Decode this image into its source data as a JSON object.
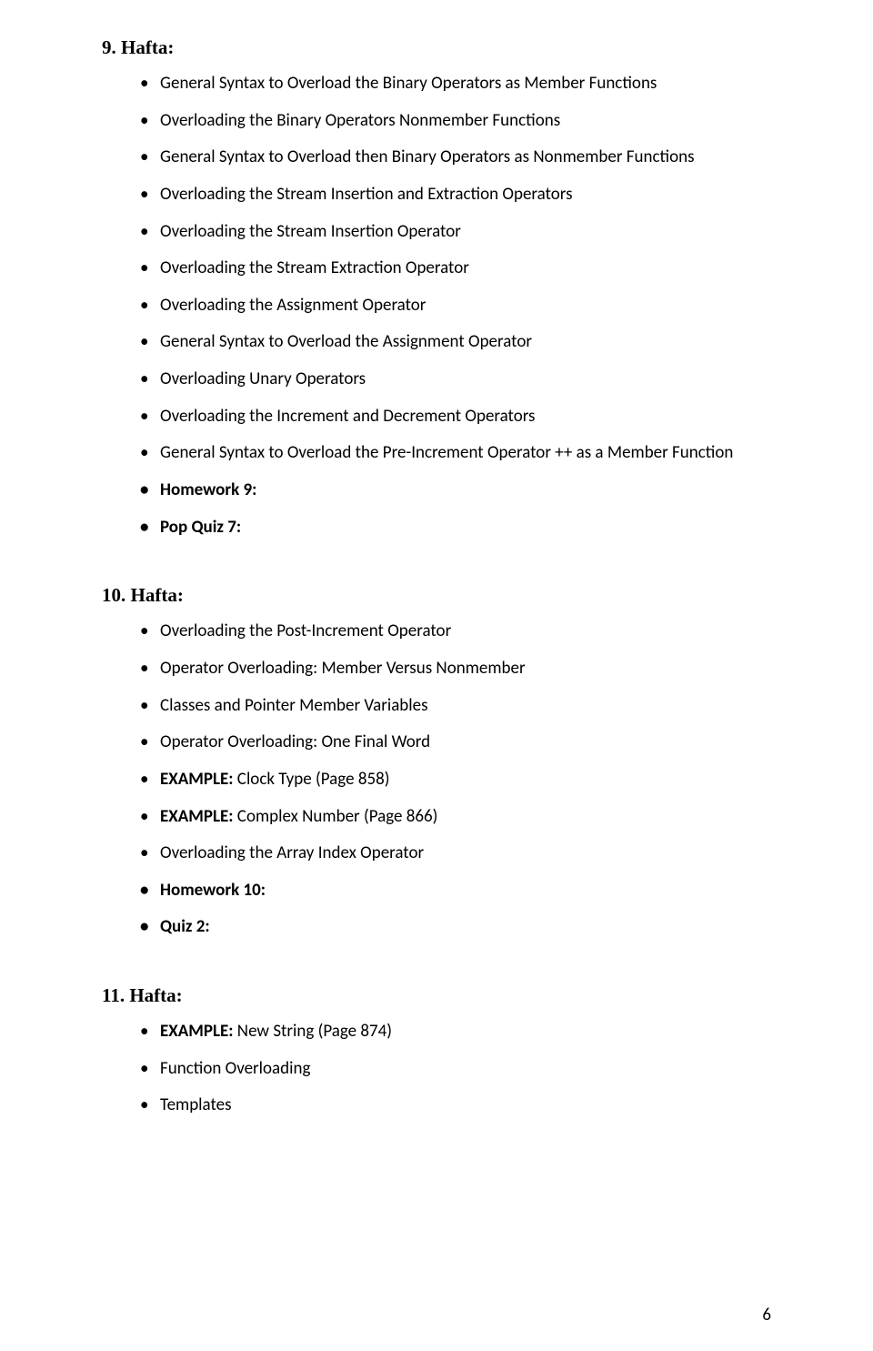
{
  "sections": [
    {
      "heading": "9. Hafta:",
      "items": [
        {
          "text": "General Syntax to Overload the Binary Operators as Member Functions",
          "bold": false
        },
        {
          "text": "Overloading the Binary Operators Nonmember Functions",
          "bold": false
        },
        {
          "text": "General Syntax to Overload then Binary Operators as Nonmember Functions",
          "bold": false
        },
        {
          "text": "Overloading the Stream Insertion and Extraction Operators",
          "bold": false
        },
        {
          "text": "Overloading the Stream Insertion Operator",
          "bold": false
        },
        {
          "text": "Overloading the Stream Extraction Operator",
          "bold": false
        },
        {
          "text": "Overloading the Assignment Operator",
          "bold": false
        },
        {
          "text": "General Syntax to Overload the Assignment Operator",
          "bold": false
        },
        {
          "text": "Overloading Unary Operators",
          "bold": false
        },
        {
          "text": "Overloading the Increment and Decrement Operators",
          "bold": false
        },
        {
          "text": "General Syntax to Overload the Pre-Increment Operator ++ as a Member Function",
          "bold": false
        },
        {
          "text": "Homework 9:",
          "bold": true
        },
        {
          "text": "Pop Quiz 7:",
          "bold": true
        }
      ]
    },
    {
      "heading": "10. Hafta:",
      "items": [
        {
          "text": "Overloading the Post-Increment Operator",
          "bold": false
        },
        {
          "text": "Operator Overloading: Member Versus Nonmember",
          "bold": false
        },
        {
          "text": "Classes and Pointer Member Variables",
          "bold": false
        },
        {
          "text": "Operator Overloading: One Final Word",
          "bold": false
        },
        {
          "boldLabel": "EXAMPLE:",
          "rest": " Clock Type (Page 858)"
        },
        {
          "boldLabel": "EXAMPLE:",
          "rest": " Complex Number (Page 866)"
        },
        {
          "text": "Overloading  the Array Index Operator",
          "bold": false
        },
        {
          "text": "Homework 10:",
          "bold": true
        },
        {
          "text": "Quiz 2:",
          "bold": true
        }
      ]
    },
    {
      "heading": "11. Hafta:",
      "items": [
        {
          "boldLabel": "EXAMPLE:",
          "rest": " New String (Page 874)"
        },
        {
          "text": "Function Overloading",
          "bold": false
        },
        {
          "text": "Templates",
          "bold": false
        }
      ]
    }
  ],
  "pageNumber": "6"
}
